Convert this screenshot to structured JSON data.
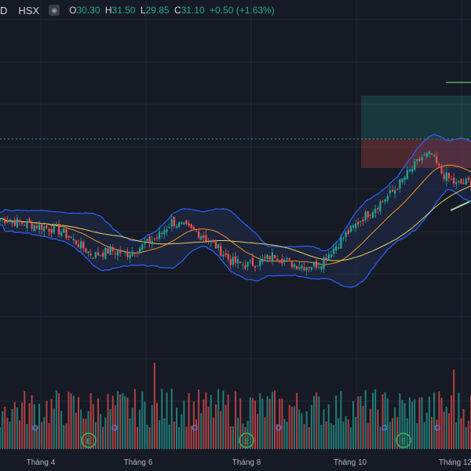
{
  "header": {
    "symbol_tail": "D",
    "exchange": "HSX",
    "ohlc": [
      {
        "k": "O",
        "v": "30.30"
      },
      {
        "k": "H",
        "v": "31.50"
      },
      {
        "k": "L",
        "v": "29.85"
      },
      {
        "k": "C",
        "v": "31.10"
      }
    ],
    "change": "+0.50 (+1.63%)"
  },
  "colors": {
    "up": "#26a69a",
    "down": "#ef5350",
    "bollinger": "#2962ff",
    "ma_short": "#f7931a",
    "ma_long": "#e8d25a",
    "fill": "#1e2a44"
  },
  "chart_data": {
    "type": "candlestick",
    "x_labels": [
      "Tháng 4",
      "Tháng 6",
      "Tháng 8",
      "Tháng 10",
      "Tháng 12"
    ],
    "price_waypoints": [
      [
        0,
        27.6
      ],
      [
        8,
        27.2
      ],
      [
        16,
        26.9
      ],
      [
        25,
        26.4
      ],
      [
        32,
        25.2
      ],
      [
        38,
        24.1
      ],
      [
        45,
        24.6
      ],
      [
        52,
        24.3
      ],
      [
        58,
        25.0
      ],
      [
        64,
        25.8
      ],
      [
        70,
        27.3
      ],
      [
        75,
        26.8
      ],
      [
        82,
        26.1
      ],
      [
        88,
        25.0
      ],
      [
        94,
        23.6
      ],
      [
        100,
        23.2
      ],
      [
        106,
        23.5
      ],
      [
        112,
        24.2
      ],
      [
        118,
        23.4
      ],
      [
        124,
        23.1
      ],
      [
        130,
        23.3
      ],
      [
        136,
        24.8
      ],
      [
        142,
        26.3
      ],
      [
        148,
        27.7
      ],
      [
        154,
        28.9
      ],
      [
        160,
        30.1
      ],
      [
        166,
        31.8
      ],
      [
        172,
        33.4
      ],
      [
        176,
        33.6
      ],
      [
        180,
        31.9
      ],
      [
        186,
        30.8
      ],
      [
        192,
        31.1
      ]
    ],
    "candles": 193,
    "volume_relative": "bars",
    "grid": true
  }
}
